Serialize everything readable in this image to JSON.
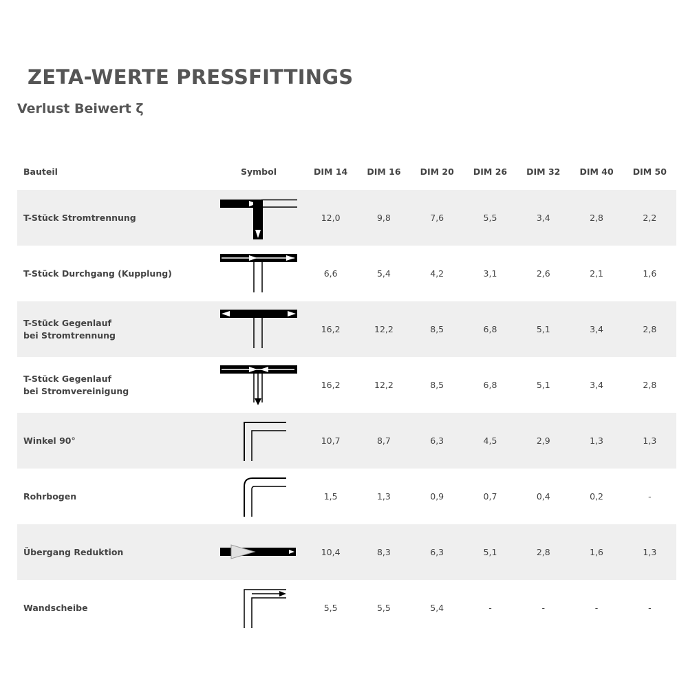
{
  "title": "ZETA-WERTE PRESSFITTINGS",
  "subtitle": "Verlust Beiwert ζ",
  "headers": [
    "Bauteil",
    "Symbol",
    "DIM 14",
    "DIM 16",
    "DIM 20",
    "DIM 26",
    "DIM 32",
    "DIM 40",
    "DIM 50"
  ],
  "rows": [
    {
      "name1": "T-Stück Stromtrennung",
      "name2": "",
      "symbol": "tee-branch-icon",
      "values": [
        "12,0",
        "9,8",
        "7,6",
        "5,5",
        "3,4",
        "2,8",
        "2,2"
      ]
    },
    {
      "name1": "T-Stück Durchgang (Kupplung)",
      "name2": "",
      "symbol": "tee-through-icon",
      "values": [
        "6,6",
        "5,4",
        "4,2",
        "3,1",
        "2,6",
        "2,1",
        "1,6"
      ]
    },
    {
      "name1": "T-Stück Gegenlauf",
      "name2": "bei Stromtrennung",
      "symbol": "tee-counter-split-icon",
      "values": [
        "16,2",
        "12,2",
        "8,5",
        "6,8",
        "5,1",
        "3,4",
        "2,8"
      ]
    },
    {
      "name1": "T-Stück Gegenlauf",
      "name2": "bei Stromvereinigung",
      "symbol": "tee-counter-merge-icon",
      "values": [
        "16,2",
        "12,2",
        "8,5",
        "6,8",
        "5,1",
        "3,4",
        "2,8"
      ]
    },
    {
      "name1": "Winkel 90°",
      "name2": "",
      "symbol": "elbow-90-icon",
      "values": [
        "10,7",
        "8,7",
        "6,3",
        "4,5",
        "2,9",
        "1,3",
        "1,3"
      ]
    },
    {
      "name1": "Rohrbogen",
      "name2": "",
      "symbol": "pipe-bend-icon",
      "values": [
        "1,5",
        "1,3",
        "0,9",
        "0,7",
        "0,4",
        "0,2",
        "-"
      ]
    },
    {
      "name1": "Übergang Reduktion",
      "name2": "",
      "symbol": "reducer-icon",
      "values": [
        "10,4",
        "8,3",
        "6,3",
        "5,1",
        "2,8",
        "1,6",
        "1,3"
      ]
    },
    {
      "name1": "Wandscheibe",
      "name2": "",
      "symbol": "wall-plate-icon",
      "values": [
        "5,5",
        "5,5",
        "5,4",
        "-",
        "-",
        "-",
        "-"
      ]
    }
  ],
  "colors": {
    "row_shade": "#efefef",
    "text": "#444444"
  }
}
